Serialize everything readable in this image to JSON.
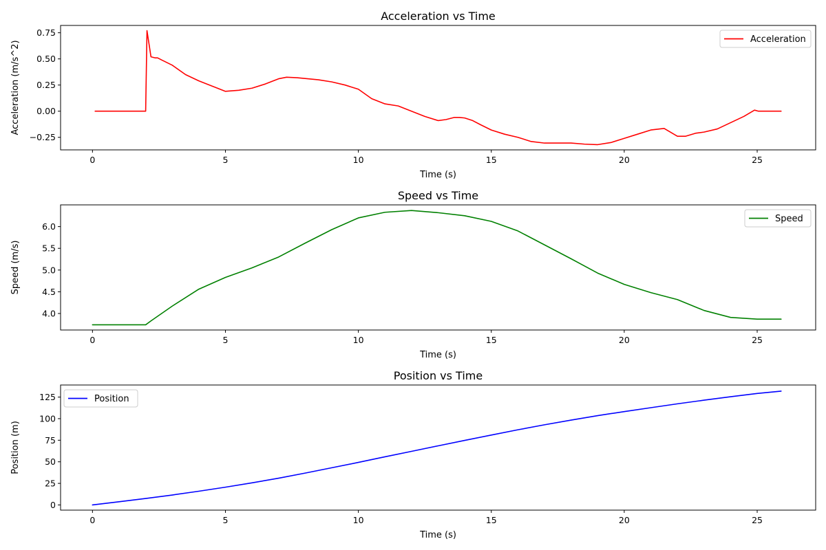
{
  "chart_data": [
    {
      "type": "line",
      "title": "Acceleration vs Time",
      "xlabel": "Time (s)",
      "ylabel": "Acceleration (m/s^2)",
      "xlim": [
        -1.2,
        27.2
      ],
      "ylim": [
        -0.37,
        0.82
      ],
      "xticks": [
        0,
        5,
        10,
        15,
        20,
        25
      ],
      "yticks": [
        -0.25,
        0.0,
        0.25,
        0.5,
        0.75
      ],
      "ytick_labels": [
        "−0.25",
        "0.00",
        "0.25",
        "0.50",
        "0.75"
      ],
      "legend": "upper right",
      "grid": false,
      "series": [
        {
          "name": "Acceleration",
          "color": "#ff0000",
          "x": [
            0.1,
            1.0,
            2.0,
            2.05,
            2.2,
            2.35,
            2.45,
            2.6,
            3.0,
            3.5,
            4.0,
            4.5,
            5.0,
            5.5,
            6.0,
            6.5,
            7.0,
            7.3,
            7.7,
            8.5,
            9.0,
            9.5,
            10.0,
            10.5,
            11.0,
            11.5,
            12.0,
            12.5,
            13.0,
            13.3,
            13.6,
            13.8,
            14.0,
            14.3,
            14.6,
            15.0,
            15.5,
            16.0,
            16.5,
            17.0,
            17.5,
            18.0,
            18.5,
            19.0,
            19.5,
            20.0,
            20.5,
            21.0,
            21.5,
            22.0,
            22.3,
            22.7,
            23.0,
            23.5,
            24.0,
            24.5,
            24.9,
            25.05,
            25.9
          ],
          "y": [
            0.0,
            0.0,
            0.0,
            0.77,
            0.52,
            0.51,
            0.51,
            0.49,
            0.44,
            0.35,
            0.29,
            0.24,
            0.19,
            0.2,
            0.22,
            0.26,
            0.31,
            0.325,
            0.32,
            0.3,
            0.28,
            0.25,
            0.21,
            0.12,
            0.07,
            0.05,
            0.0,
            -0.05,
            -0.09,
            -0.08,
            -0.06,
            -0.06,
            -0.065,
            -0.09,
            -0.13,
            -0.18,
            -0.22,
            -0.25,
            -0.29,
            -0.305,
            -0.305,
            -0.305,
            -0.315,
            -0.32,
            -0.3,
            -0.26,
            -0.22,
            -0.18,
            -0.165,
            -0.24,
            -0.24,
            -0.21,
            -0.2,
            -0.17,
            -0.11,
            -0.05,
            0.01,
            0.0,
            0.0
          ]
        }
      ]
    },
    {
      "type": "line",
      "title": "Speed vs Time",
      "xlabel": "Time (s)",
      "ylabel": "Speed (m/s)",
      "xlim": [
        -1.2,
        27.2
      ],
      "ylim": [
        3.62,
        6.5
      ],
      "xticks": [
        0,
        5,
        10,
        15,
        20,
        25
      ],
      "yticks": [
        4.0,
        4.5,
        5.0,
        5.5,
        6.0
      ],
      "ytick_labels": [
        "4.0",
        "4.5",
        "5.0",
        "5.5",
        "6.0"
      ],
      "legend": "upper right",
      "grid": false,
      "series": [
        {
          "name": "Speed",
          "color": "#008000",
          "x": [
            0,
            1,
            2,
            2.2,
            3,
            4,
            5,
            6,
            7,
            8,
            9,
            10,
            11,
            12,
            13,
            14,
            15,
            16,
            17,
            18,
            19,
            20,
            21,
            22,
            23,
            24,
            25,
            25.9
          ],
          "y": [
            3.74,
            3.74,
            3.74,
            3.83,
            4.17,
            4.56,
            4.83,
            5.05,
            5.3,
            5.62,
            5.93,
            6.2,
            6.33,
            6.37,
            6.32,
            6.25,
            6.12,
            5.9,
            5.58,
            5.26,
            4.93,
            4.67,
            4.48,
            4.32,
            4.07,
            3.91,
            3.87,
            3.87
          ]
        }
      ]
    },
    {
      "type": "line",
      "title": "Position vs Time",
      "xlabel": "Time (s)",
      "ylabel": "Position (m)",
      "xlim": [
        -1.2,
        27.2
      ],
      "ylim": [
        -6.0,
        139.0
      ],
      "xticks": [
        0,
        5,
        10,
        15,
        20,
        25
      ],
      "yticks": [
        0,
        25,
        50,
        75,
        100,
        125
      ],
      "ytick_labels": [
        "0",
        "25",
        "50",
        "75",
        "100",
        "125"
      ],
      "legend": "upper left",
      "grid": false,
      "series": [
        {
          "name": "Position",
          "color": "#0000ff",
          "x": [
            0,
            1,
            2,
            3,
            4,
            5,
            6,
            7,
            8,
            9,
            10,
            11,
            12,
            13,
            14,
            15,
            16,
            17,
            18,
            19,
            20,
            21,
            22,
            23,
            24,
            25,
            25.9
          ],
          "y": [
            0,
            3.7,
            7.5,
            11.5,
            15.9,
            20.6,
            25.6,
            31.0,
            36.9,
            43.1,
            49.3,
            55.8,
            62.1,
            68.5,
            74.8,
            81.0,
            87.1,
            92.9,
            98.3,
            103.5,
            108.2,
            112.7,
            117.2,
            121.4,
            125.4,
            129.2,
            131.9
          ]
        }
      ]
    }
  ]
}
